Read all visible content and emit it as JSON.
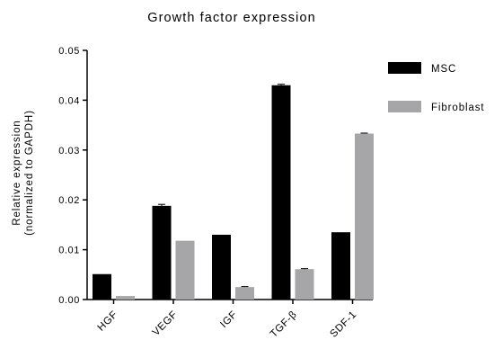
{
  "chart_data": {
    "type": "bar",
    "title": "Growth factor expression",
    "ylabel_line1": "Relative expression",
    "ylabel_line2": "(normalized to GAPDH)",
    "categories": [
      "HGF",
      "VEGF",
      "IGF",
      "TGF-β",
      "SDF-1"
    ],
    "series": [
      {
        "name": "MSC",
        "color": "#000000",
        "values": [
          0.0051,
          0.0188,
          0.013,
          0.043,
          0.0135
        ],
        "errors": [
          0,
          0.0003,
          0,
          0.0002,
          0
        ]
      },
      {
        "name": "Fibroblast",
        "color": "#a6a6a8",
        "values": [
          0.0007,
          0.0118,
          0.0025,
          0.0061,
          0.0333
        ],
        "errors": [
          0,
          0,
          0.0001,
          0.0001,
          0.0001
        ]
      }
    ],
    "ylim": [
      0,
      0.05
    ],
    "yticks": [
      0,
      0.01,
      0.02,
      0.03,
      0.04,
      0.05
    ],
    "ytick_labels": [
      "0.00",
      "0.01",
      "0.02",
      "0.03",
      "0.04",
      "0.05"
    ],
    "legend_position": "top-right",
    "grid": false
  }
}
